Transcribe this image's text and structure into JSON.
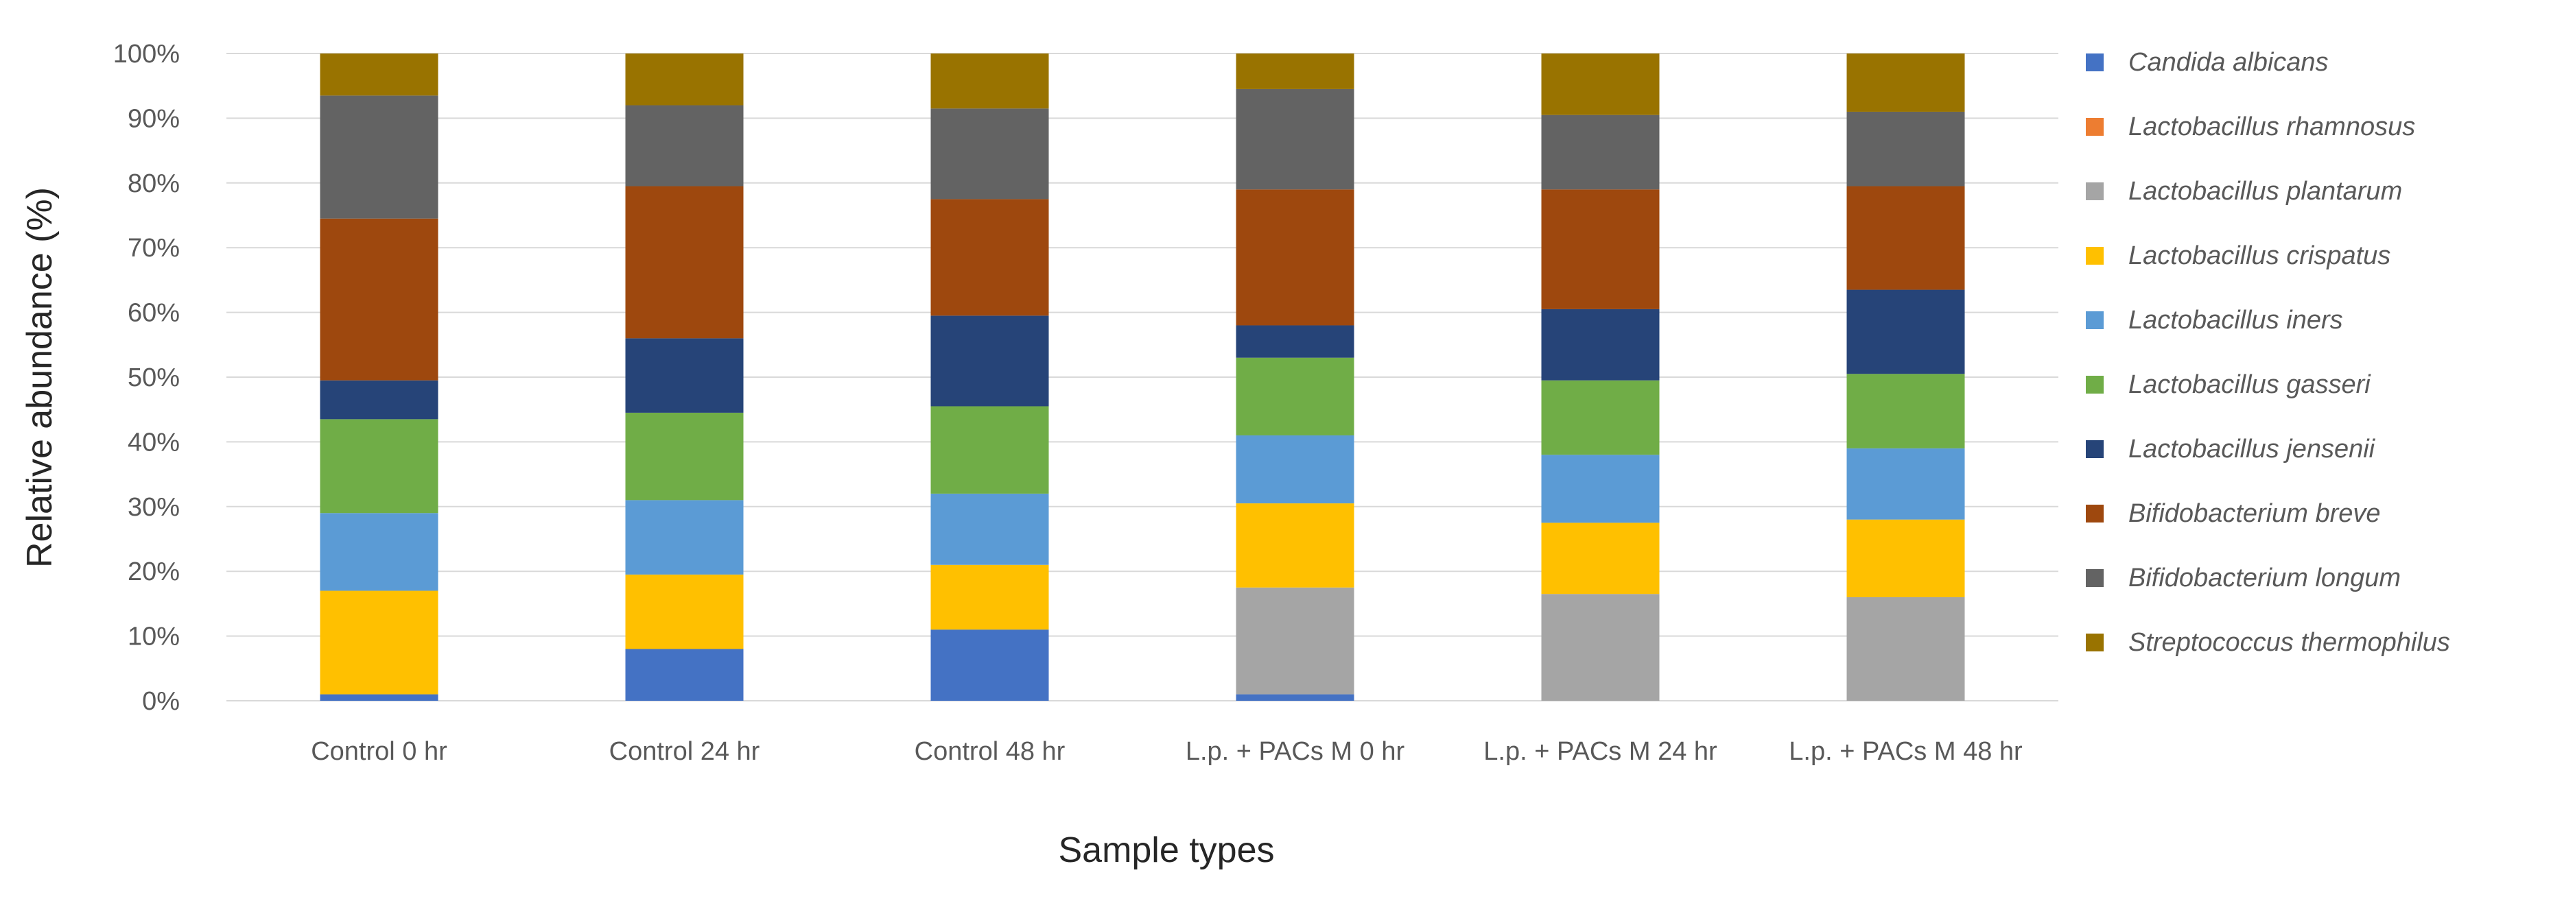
{
  "chart_data": {
    "type": "bar",
    "stacked": true,
    "title": "",
    "xlabel": "Sample types",
    "ylabel": "Relative abundance (%)",
    "ylim": [
      0,
      100
    ],
    "yticks": [
      "0%",
      "10%",
      "20%",
      "30%",
      "40%",
      "50%",
      "60%",
      "70%",
      "80%",
      "90%",
      "100%"
    ],
    "grid": true,
    "legend_position": "right",
    "categories": [
      "Control 0 hr",
      "Control 24 hr",
      "Control 48 hr",
      "L.p. + PACs M 0 hr",
      "L.p. + PACs M 24 hr",
      "L.p. + PACs M 48 hr"
    ],
    "series": [
      {
        "name": "Candida albicans",
        "color": "#4472c4",
        "values": [
          1,
          8,
          11,
          1,
          0,
          0
        ]
      },
      {
        "name": "Lactobacillus rhamnosus",
        "color": "#ed7d31",
        "values": [
          0,
          0,
          0,
          0,
          0,
          0
        ]
      },
      {
        "name": "Lactobacillus plantarum",
        "color": "#a5a5a5",
        "values": [
          0,
          0,
          0,
          16.5,
          16.5,
          16
        ]
      },
      {
        "name": "Lactobacillus crispatus",
        "color": "#ffc000",
        "values": [
          16,
          11.5,
          10,
          13,
          11,
          12
        ]
      },
      {
        "name": "Lactobacillus iners",
        "color": "#5b9bd5",
        "values": [
          12,
          11.5,
          11,
          10.5,
          10.5,
          11
        ]
      },
      {
        "name": "Lactobacillus gasseri",
        "color": "#70ad47",
        "values": [
          14.5,
          13.5,
          13.5,
          12,
          11.5,
          11.5
        ]
      },
      {
        "name": "Lactobacillus jensenii",
        "color": "#264478",
        "values": [
          6,
          11.5,
          14,
          5,
          11,
          13
        ]
      },
      {
        "name": "Bifidobacterium breve",
        "color": "#9e480e",
        "values": [
          25,
          23.5,
          18,
          21,
          18.5,
          16
        ]
      },
      {
        "name": "Bifidobacterium longum",
        "color": "#636363",
        "values": [
          19,
          12.5,
          14,
          15.5,
          11.5,
          11.5
        ]
      },
      {
        "name": "Streptococcus thermophilus",
        "color": "#997300",
        "values": [
          6.5,
          8,
          8.5,
          5.5,
          9.5,
          9
        ]
      }
    ]
  }
}
